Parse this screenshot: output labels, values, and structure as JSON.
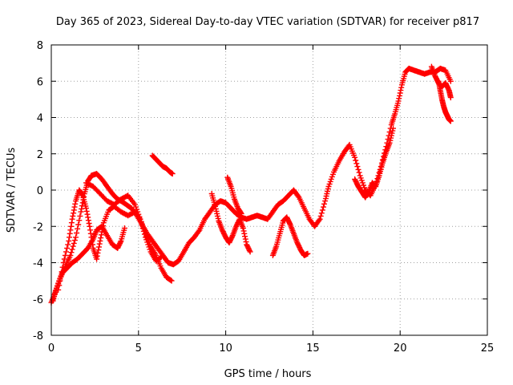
{
  "chart_data": {
    "type": "scatter",
    "title": "Day 365 of 2023, Sidereal Day-to-day VTEC variation (SDTVAR) for receiver p817",
    "xlabel": "GPS time / hours",
    "ylabel": "SDTVAR / TECUs",
    "xlim": [
      0,
      25
    ],
    "ylim": [
      -8,
      8
    ],
    "xticks": [
      0,
      5,
      10,
      15,
      20,
      25
    ],
    "yticks": [
      -8,
      -6,
      -4,
      -2,
      0,
      2,
      4,
      6,
      8
    ],
    "grid": true,
    "marker": "plus",
    "color": "#ff0000",
    "series": [
      {
        "name": "trace-1",
        "points": [
          [
            0.0,
            -6.2
          ],
          [
            0.2,
            -5.7
          ],
          [
            0.5,
            -4.9
          ],
          [
            0.8,
            -4.2
          ],
          [
            1.1,
            -3.6
          ],
          [
            1.4,
            -2.6
          ],
          [
            1.7,
            -1.2
          ],
          [
            1.9,
            -0.2
          ],
          [
            2.1,
            0.5
          ],
          [
            2.3,
            0.8
          ],
          [
            2.6,
            0.9
          ],
          [
            2.9,
            0.6
          ],
          [
            3.2,
            0.2
          ],
          [
            3.5,
            -0.2
          ],
          [
            3.8,
            -0.5
          ],
          [
            4.0,
            -0.6
          ],
          [
            4.3,
            -0.8
          ],
          [
            4.6,
            -1.0
          ],
          [
            4.9,
            -1.4
          ],
          [
            5.2,
            -1.9
          ],
          [
            5.5,
            -2.4
          ],
          [
            5.8,
            -2.8
          ],
          [
            6.1,
            -3.2
          ],
          [
            6.4,
            -3.6
          ],
          [
            6.7,
            -4.0
          ],
          [
            7.0,
            -4.1
          ],
          [
            7.3,
            -3.9
          ],
          [
            7.6,
            -3.4
          ],
          [
            7.9,
            -2.9
          ],
          [
            8.2,
            -2.6
          ],
          [
            8.5,
            -2.2
          ],
          [
            8.8,
            -1.6
          ],
          [
            9.1,
            -1.2
          ],
          [
            9.4,
            -0.8
          ],
          [
            9.7,
            -0.6
          ],
          [
            10.0,
            -0.7
          ],
          [
            10.3,
            -1.0
          ],
          [
            10.6,
            -1.3
          ],
          [
            10.9,
            -1.5
          ],
          [
            11.2,
            -1.6
          ],
          [
            11.5,
            -1.5
          ],
          [
            11.8,
            -1.4
          ],
          [
            12.1,
            -1.5
          ],
          [
            12.4,
            -1.6
          ],
          [
            12.7,
            -1.2
          ],
          [
            13.0,
            -0.8
          ],
          [
            13.3,
            -0.6
          ],
          [
            13.6,
            -0.3
          ],
          [
            13.9,
            0.0
          ],
          [
            14.2,
            -0.4
          ],
          [
            14.5,
            -1.0
          ],
          [
            14.8,
            -1.6
          ],
          [
            15.1,
            -2.0
          ],
          [
            15.4,
            -1.6
          ],
          [
            15.7,
            -0.6
          ],
          [
            15.9,
            0.2
          ],
          [
            16.2,
            1.0
          ],
          [
            16.5,
            1.6
          ],
          [
            16.8,
            2.1
          ],
          [
            17.1,
            2.5
          ],
          [
            17.4,
            1.8
          ],
          [
            17.7,
            0.8
          ],
          [
            18.0,
            0.0
          ],
          [
            18.3,
            -0.3
          ],
          [
            18.6,
            0.3
          ],
          [
            18.9,
            1.3
          ],
          [
            19.2,
            2.4
          ],
          [
            19.5,
            3.6
          ],
          [
            19.7,
            4.2
          ],
          [
            19.9,
            4.9
          ],
          [
            20.1,
            5.8
          ],
          [
            20.3,
            6.5
          ],
          [
            20.5,
            6.7
          ],
          [
            20.8,
            6.6
          ],
          [
            21.1,
            6.5
          ],
          [
            21.4,
            6.4
          ],
          [
            21.7,
            6.5
          ],
          [
            22.0,
            6.5
          ],
          [
            22.3,
            6.7
          ],
          [
            22.6,
            6.6
          ],
          [
            22.9,
            6.0
          ]
        ]
      },
      {
        "name": "trace-2",
        "points": [
          [
            0.4,
            -5.5
          ],
          [
            0.7,
            -4.0
          ],
          [
            1.0,
            -2.8
          ],
          [
            1.2,
            -1.6
          ],
          [
            1.4,
            -0.6
          ],
          [
            1.6,
            0.0
          ],
          [
            1.8,
            -0.3
          ],
          [
            2.0,
            -1.0
          ],
          [
            2.2,
            -2.0
          ],
          [
            2.4,
            -3.2
          ],
          [
            2.6,
            -3.8
          ],
          [
            2.8,
            -2.8
          ],
          [
            3.0,
            -1.8
          ],
          [
            3.3,
            -1.1
          ],
          [
            3.6,
            -0.9
          ],
          [
            4.0,
            -1.2
          ],
          [
            4.4,
            -1.4
          ],
          [
            4.8,
            -1.2
          ],
          [
            5.1,
            -1.6
          ],
          [
            5.4,
            -2.4
          ],
          [
            5.7,
            -3.1
          ],
          [
            6.0,
            -3.6
          ],
          [
            6.3,
            -4.3
          ],
          [
            6.6,
            -4.8
          ],
          [
            6.9,
            -5.0
          ]
        ]
      },
      {
        "name": "trace-3",
        "points": [
          [
            0.1,
            -6.1
          ],
          [
            0.3,
            -5.4
          ],
          [
            0.6,
            -4.6
          ],
          [
            0.9,
            -4.3
          ],
          [
            1.2,
            -4.0
          ],
          [
            1.5,
            -3.8
          ],
          [
            1.8,
            -3.5
          ],
          [
            2.1,
            -3.2
          ],
          [
            2.4,
            -2.7
          ],
          [
            2.6,
            -2.2
          ],
          [
            2.9,
            -2.0
          ],
          [
            3.2,
            -2.5
          ],
          [
            3.5,
            -3.0
          ],
          [
            3.8,
            -3.2
          ],
          [
            4.0,
            -2.8
          ],
          [
            4.2,
            -2.1
          ]
        ]
      },
      {
        "name": "trace-4",
        "points": [
          [
            2.0,
            0.4
          ],
          [
            2.4,
            0.2
          ],
          [
            2.8,
            -0.2
          ],
          [
            3.2,
            -0.6
          ],
          [
            3.6,
            -0.8
          ],
          [
            4.0,
            -0.5
          ],
          [
            4.4,
            -0.3
          ],
          [
            4.8,
            -0.8
          ],
          [
            5.1,
            -1.6
          ],
          [
            5.4,
            -2.6
          ],
          [
            5.7,
            -3.4
          ],
          [
            6.0,
            -3.9
          ],
          [
            6.3,
            -3.7
          ]
        ]
      },
      {
        "name": "trace-5",
        "points": [
          [
            5.8,
            1.9
          ],
          [
            6.0,
            1.7
          ],
          [
            6.2,
            1.5
          ],
          [
            6.4,
            1.3
          ],
          [
            6.6,
            1.2
          ],
          [
            6.8,
            1.0
          ],
          [
            6.95,
            0.9
          ]
        ]
      },
      {
        "name": "trace-6",
        "points": [
          [
            9.2,
            -0.2
          ],
          [
            9.4,
            -0.9
          ],
          [
            9.6,
            -1.7
          ],
          [
            9.8,
            -2.2
          ],
          [
            10.0,
            -2.6
          ],
          [
            10.2,
            -2.9
          ],
          [
            10.4,
            -2.5
          ],
          [
            10.6,
            -2.0
          ],
          [
            10.8,
            -1.6
          ],
          [
            11.0,
            -2.1
          ],
          [
            11.2,
            -3.0
          ],
          [
            11.4,
            -3.4
          ]
        ]
      },
      {
        "name": "trace-7",
        "points": [
          [
            10.1,
            0.7
          ],
          [
            10.3,
            0.2
          ],
          [
            10.5,
            -0.5
          ],
          [
            10.7,
            -1.0
          ],
          [
            10.9,
            -1.3
          ]
        ]
      },
      {
        "name": "trace-8",
        "points": [
          [
            12.7,
            -3.6
          ],
          [
            12.9,
            -3.1
          ],
          [
            13.1,
            -2.4
          ],
          [
            13.3,
            -1.7
          ],
          [
            13.5,
            -1.5
          ],
          [
            13.7,
            -1.9
          ],
          [
            13.9,
            -2.4
          ],
          [
            14.1,
            -2.9
          ],
          [
            14.3,
            -3.3
          ],
          [
            14.5,
            -3.6
          ],
          [
            14.7,
            -3.5
          ]
        ]
      },
      {
        "name": "trace-9",
        "points": [
          [
            17.4,
            0.6
          ],
          [
            17.6,
            0.2
          ],
          [
            17.8,
            -0.1
          ],
          [
            18.0,
            -0.4
          ],
          [
            18.2,
            -0.1
          ],
          [
            18.4,
            0.4
          ],
          [
            18.6,
            0.2
          ],
          [
            18.8,
            0.8
          ],
          [
            19.0,
            1.5
          ],
          [
            19.2,
            2.1
          ],
          [
            19.4,
            2.6
          ],
          [
            19.6,
            3.4
          ]
        ]
      },
      {
        "name": "trace-10",
        "points": [
          [
            22.2,
            6.0
          ],
          [
            22.3,
            5.5
          ],
          [
            22.4,
            5.0
          ],
          [
            22.5,
            4.6
          ],
          [
            22.6,
            4.3
          ],
          [
            22.7,
            4.1
          ],
          [
            22.8,
            3.9
          ],
          [
            22.9,
            3.8
          ]
        ]
      },
      {
        "name": "trace-11",
        "points": [
          [
            21.8,
            6.8
          ],
          [
            22.0,
            6.3
          ],
          [
            22.2,
            5.9
          ],
          [
            22.4,
            5.7
          ],
          [
            22.6,
            5.9
          ],
          [
            22.8,
            5.5
          ],
          [
            22.9,
            5.1
          ]
        ]
      }
    ]
  }
}
